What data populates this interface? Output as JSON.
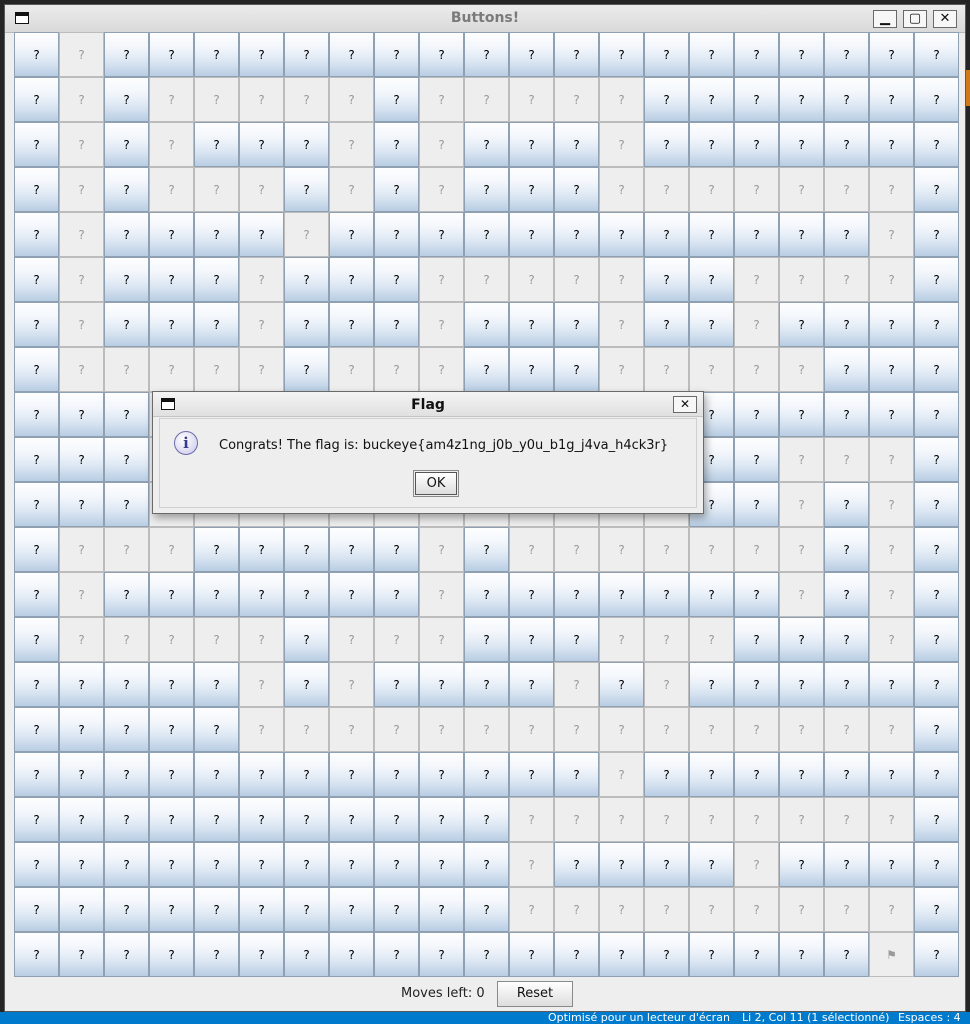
{
  "window": {
    "title": "Buttons!",
    "minimize_glyph": "▁",
    "maximize_glyph": "▢",
    "close_glyph": "✕"
  },
  "grid": {
    "rows": 21,
    "cols": 21,
    "button_label": "?",
    "flag_glyph": "⚑",
    "layout": [
      "EDEEEEEEEEEEEEEEEEEEE",
      "EDEDDDDDEDDDDDEEEEEEE",
      "EDEDEEEDEDEEEDEEEEEEE",
      "EDEDDDEDEDEEEDDDDDDDE",
      "EDEEEEDEEEEEEEEEEEEDE",
      "EDEEEDEEEDDDDDEEDDDDE",
      "EDEEEDEEEDEEEDEEDEEEE",
      "EDDDDDEDDDEEEDDDDDEEE",
      "EEEDDDDDDDDDEEEEEEEEE",
      "EEEDDDDDDDDDDDDEEDDDE",
      "EEEDDDDDDDDDDDDEEDEDE",
      "EDDDEEEEEDEDDDDDDDEDE",
      "EDEEEEEEEDEEEEEEEDEDE",
      "EDDDDDEDDDEEEDDDEEEDE",
      "EEEEEDEDEEEEDEDEEEEEE",
      "EEEEEDDDDDDDDDDDDDDDE",
      "EEEEEEEEEEEEEDEEEEEEE",
      "EEEEEEEEEEEDDDDDDDDDE",
      "EEEEEEEEEEEDEEEEDEEEE",
      "EEEEEEEEEEEDDDDDDDDDE",
      "EEEEEEEEEEEEEEEEEEEFE"
    ]
  },
  "bottom": {
    "moves_label": "Moves left: 0",
    "reset_label": "Reset"
  },
  "dialog": {
    "title": "Flag",
    "close_glyph": "✕",
    "info_glyph": "i",
    "message": "Congrats! The flag is: buckeye{am4z1ng_j0b_y0u_b1g_j4va_h4ck3r}",
    "ok_label": "OK"
  },
  "background_status": {
    "left_text": "Optimisé pour un lecteur d'écran",
    "middle_text": "Li 2, Col 11 (1 sélectionné)",
    "right_text": "Espaces : 4"
  },
  "colors": {
    "button_gradient_top": "#fefeff",
    "button_gradient_bottom": "#b8cde3",
    "disabled_bg": "#eeeeee",
    "window_bg": "#eeeeee"
  }
}
